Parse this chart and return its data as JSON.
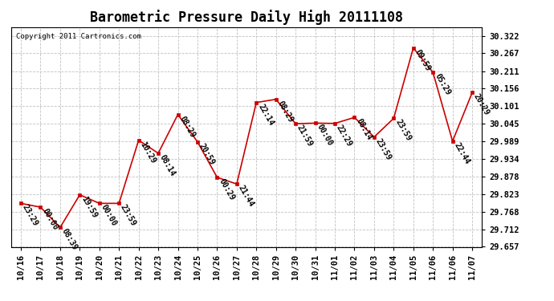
{
  "title": "Barometric Pressure Daily High 20111108",
  "copyright": "Copyright 2011 Cartronics.com",
  "points": [
    [
      0,
      29.794,
      "23:29"
    ],
    [
      1,
      29.782,
      "00:00"
    ],
    [
      2,
      29.718,
      "08:39"
    ],
    [
      3,
      29.821,
      "19:59"
    ],
    [
      4,
      29.794,
      "00:00"
    ],
    [
      5,
      29.794,
      "23:59"
    ],
    [
      6,
      29.993,
      "10:29"
    ],
    [
      7,
      29.952,
      "08:14"
    ],
    [
      8,
      30.074,
      "08:29"
    ],
    [
      9,
      29.988,
      "20:59"
    ],
    [
      10,
      29.876,
      "00:29"
    ],
    [
      11,
      29.855,
      "21:44"
    ],
    [
      12,
      30.112,
      "22:14"
    ],
    [
      13,
      30.122,
      "08:29"
    ],
    [
      14,
      30.045,
      "21:59"
    ],
    [
      15,
      30.047,
      "00:00"
    ],
    [
      16,
      30.046,
      "22:29"
    ],
    [
      17,
      30.065,
      "08:14"
    ],
    [
      18,
      30.003,
      "23:59"
    ],
    [
      19,
      30.062,
      "23:59"
    ],
    [
      20,
      30.284,
      "09:59"
    ],
    [
      21,
      30.207,
      "05:29"
    ],
    [
      22,
      29.99,
      "22:44"
    ],
    [
      23,
      30.143,
      "20:29"
    ]
  ],
  "x_labels": [
    "10/16",
    "10/17",
    "10/18",
    "10/19",
    "10/20",
    "10/21",
    "10/22",
    "10/23",
    "10/24",
    "10/25",
    "10/26",
    "10/27",
    "10/28",
    "10/29",
    "10/30",
    "10/31",
    "11/01",
    "11/02",
    "11/03",
    "11/04",
    "11/05",
    "11/06",
    "11/06",
    "11/07"
  ],
  "ylim_min": 29.657,
  "ylim_max": 30.3497,
  "y_ticks": [
    29.657,
    29.712,
    29.768,
    29.823,
    29.878,
    29.934,
    29.989,
    30.045,
    30.101,
    30.156,
    30.211,
    30.267,
    30.322
  ],
  "line_color": "#cc0000",
  "bg_color": "#ffffff",
  "grid_color": "#bbbbbb",
  "title_fontsize": 12,
  "annotation_fontsize": 7.0,
  "tick_fontsize": 7.5
}
